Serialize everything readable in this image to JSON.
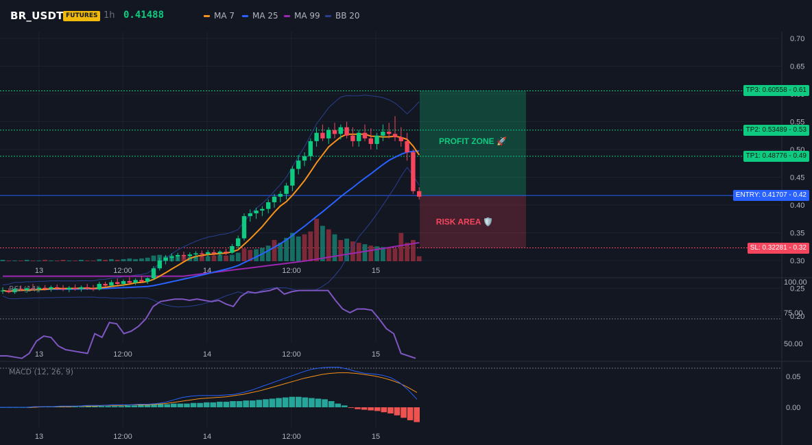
{
  "header": {
    "symbol": "BR_USDT",
    "badge": "FUTURES",
    "timeframe": "1h",
    "price": "0.41488",
    "legend": [
      {
        "label": "MA 7",
        "color": "#f7931a"
      },
      {
        "label": "MA 25",
        "color": "#2962ff"
      },
      {
        "label": "MA 99",
        "color": "#9c27b0"
      },
      {
        "label": "BB 20",
        "color": "#2a3f8f"
      }
    ]
  },
  "colors": {
    "up": "#0ecb81",
    "down": "#f6465d",
    "background": "#131722",
    "tp": "#0ecb81",
    "entry": "#2962ff",
    "sl": "#f6465d",
    "rsi": "#7e57c2"
  },
  "price_axis": [
    "0.70",
    "0.65",
    "0.60",
    "0.55",
    "0.50",
    "0.45",
    "0.40",
    "0.35",
    "0.30",
    "0.25",
    "0.20"
  ],
  "x_axis": [
    "13",
    "12:00",
    "14",
    "12:00",
    "15"
  ],
  "levels": [
    {
      "kind": "tp",
      "label": "TP3: 0.60558",
      "value": 0.60558,
      "axis": "0.61"
    },
    {
      "kind": "tp",
      "label": "TP2: 0.53489",
      "value": 0.53489,
      "axis": "0.53"
    },
    {
      "kind": "tp",
      "label": "TP1: 0.48776",
      "value": 0.48776,
      "axis": "0.49"
    },
    {
      "kind": "entry",
      "label": "ENTRY: 0.41707",
      "value": 0.41707,
      "axis": "0.42"
    },
    {
      "kind": "sl",
      "label": "SL: 0.32281",
      "value": 0.32281,
      "axis": "0.32"
    }
  ],
  "zones": {
    "profit": "PROFIT ZONE 🚀",
    "risk": "RISK AREA 🛡️"
  },
  "rsi": {
    "label": "RSI (14)",
    "axis": [
      "100.00",
      "75.00",
      "50.00"
    ]
  },
  "macd": {
    "label": "MACD (12, 26, 9)",
    "axis": [
      "0.05",
      "0.00"
    ]
  },
  "chart_data": {
    "type": "candlestick",
    "ylim": [
      0.17,
      0.71
    ],
    "candles": [
      [
        0.245,
        0.252,
        0.24,
        0.246
      ],
      [
        0.246,
        0.25,
        0.241,
        0.243
      ],
      [
        0.243,
        0.251,
        0.24,
        0.249
      ],
      [
        0.249,
        0.255,
        0.245,
        0.247
      ],
      [
        0.247,
        0.252,
        0.242,
        0.25
      ],
      [
        0.25,
        0.258,
        0.246,
        0.248
      ],
      [
        0.248,
        0.254,
        0.243,
        0.251
      ],
      [
        0.251,
        0.256,
        0.246,
        0.249
      ],
      [
        0.249,
        0.255,
        0.244,
        0.252
      ],
      [
        0.252,
        0.257,
        0.247,
        0.25
      ],
      [
        0.25,
        0.256,
        0.245,
        0.248
      ],
      [
        0.248,
        0.254,
        0.243,
        0.251
      ],
      [
        0.251,
        0.257,
        0.246,
        0.249
      ],
      [
        0.249,
        0.255,
        0.244,
        0.252
      ],
      [
        0.252,
        0.258,
        0.247,
        0.25
      ],
      [
        0.25,
        0.256,
        0.245,
        0.248
      ],
      [
        0.248,
        0.262,
        0.246,
        0.258
      ],
      [
        0.258,
        0.262,
        0.252,
        0.255
      ],
      [
        0.255,
        0.265,
        0.252,
        0.261
      ],
      [
        0.261,
        0.268,
        0.256,
        0.258
      ],
      [
        0.258,
        0.266,
        0.254,
        0.263
      ],
      [
        0.263,
        0.27,
        0.258,
        0.26
      ],
      [
        0.26,
        0.268,
        0.256,
        0.265
      ],
      [
        0.265,
        0.272,
        0.26,
        0.262
      ],
      [
        0.262,
        0.27,
        0.258,
        0.268
      ],
      [
        0.268,
        0.29,
        0.265,
        0.286
      ],
      [
        0.286,
        0.305,
        0.282,
        0.3
      ],
      [
        0.3,
        0.31,
        0.293,
        0.305
      ],
      [
        0.305,
        0.313,
        0.298,
        0.307
      ],
      [
        0.307,
        0.314,
        0.3,
        0.31
      ],
      [
        0.31,
        0.316,
        0.303,
        0.308
      ],
      [
        0.308,
        0.315,
        0.302,
        0.311
      ],
      [
        0.311,
        0.317,
        0.304,
        0.313
      ],
      [
        0.313,
        0.318,
        0.306,
        0.312
      ],
      [
        0.312,
        0.319,
        0.307,
        0.315
      ],
      [
        0.315,
        0.32,
        0.309,
        0.313
      ],
      [
        0.313,
        0.319,
        0.308,
        0.316
      ],
      [
        0.316,
        0.321,
        0.31,
        0.314
      ],
      [
        0.314,
        0.33,
        0.312,
        0.326
      ],
      [
        0.326,
        0.345,
        0.322,
        0.34
      ],
      [
        0.34,
        0.385,
        0.336,
        0.38
      ],
      [
        0.38,
        0.392,
        0.37,
        0.385
      ],
      [
        0.385,
        0.395,
        0.375,
        0.39
      ],
      [
        0.39,
        0.398,
        0.38,
        0.393
      ],
      [
        0.393,
        0.41,
        0.385,
        0.405
      ],
      [
        0.405,
        0.42,
        0.395,
        0.415
      ],
      [
        0.415,
        0.425,
        0.405,
        0.42
      ],
      [
        0.42,
        0.44,
        0.41,
        0.435
      ],
      [
        0.435,
        0.47,
        0.425,
        0.465
      ],
      [
        0.465,
        0.49,
        0.455,
        0.48
      ],
      [
        0.48,
        0.495,
        0.47,
        0.488
      ],
      [
        0.488,
        0.52,
        0.48,
        0.515
      ],
      [
        0.515,
        0.54,
        0.505,
        0.53
      ],
      [
        0.53,
        0.545,
        0.515,
        0.52
      ],
      [
        0.52,
        0.54,
        0.51,
        0.535
      ],
      [
        0.535,
        0.548,
        0.52,
        0.528
      ],
      [
        0.528,
        0.545,
        0.518,
        0.54
      ],
      [
        0.54,
        0.55,
        0.52,
        0.525
      ],
      [
        0.525,
        0.54,
        0.505,
        0.515
      ],
      [
        0.515,
        0.535,
        0.505,
        0.53
      ],
      [
        0.53,
        0.545,
        0.515,
        0.52
      ],
      [
        0.52,
        0.538,
        0.5,
        0.51
      ],
      [
        0.51,
        0.53,
        0.5,
        0.525
      ],
      [
        0.525,
        0.545,
        0.515,
        0.532
      ],
      [
        0.532,
        0.548,
        0.52,
        0.528
      ],
      [
        0.528,
        0.56,
        0.515,
        0.522
      ],
      [
        0.522,
        0.54,
        0.505,
        0.515
      ],
      [
        0.515,
        0.53,
        0.48,
        0.495
      ],
      [
        0.495,
        0.5,
        0.42,
        0.425
      ],
      [
        0.425,
        0.432,
        0.41,
        0.415
      ]
    ],
    "volume": [
      2,
      1,
      1,
      1,
      2,
      1,
      1,
      2,
      1,
      1,
      2,
      1,
      1,
      2,
      1,
      1,
      3,
      2,
      3,
      2,
      3,
      4,
      3,
      4,
      5,
      8,
      9,
      7,
      8,
      6,
      7,
      6,
      7,
      8,
      7,
      8,
      9,
      8,
      9,
      12,
      18,
      16,
      17,
      19,
      22,
      30,
      26,
      33,
      40,
      35,
      38,
      42,
      60,
      50,
      45,
      38,
      30,
      32,
      28,
      26,
      24,
      22,
      21,
      20,
      19,
      18,
      40,
      26,
      30,
      7
    ],
    "volume_up": [
      1,
      0,
      1,
      0,
      1,
      0,
      1,
      0,
      1,
      0,
      0,
      1,
      0,
      1,
      0,
      0,
      1,
      0,
      1,
      0,
      1,
      1,
      1,
      1,
      1,
      1,
      1,
      1,
      1,
      1,
      0,
      1,
      1,
      0,
      1,
      0,
      1,
      0,
      1,
      1,
      0,
      0,
      1,
      1,
      1,
      0,
      1,
      1,
      1,
      1,
      0,
      0,
      0,
      1,
      0,
      1,
      0,
      1,
      0,
      0,
      1,
      0,
      1,
      1,
      0,
      0,
      0,
      0,
      0,
      0
    ],
    "rsi": [
      40,
      40,
      39,
      38,
      42,
      52,
      56,
      55,
      48,
      45,
      44,
      43,
      42,
      58,
      55,
      67,
      66,
      58,
      60,
      64,
      70,
      80,
      84,
      85,
      86,
      86,
      85,
      86,
      85,
      84,
      85,
      82,
      80,
      88,
      92,
      91,
      92,
      93,
      95,
      90,
      92,
      93,
      93,
      93,
      93,
      93,
      85,
      78,
      75,
      78,
      78,
      77,
      70,
      62,
      58,
      42,
      40,
      38
    ],
    "macd_hist": [
      0,
      0,
      0,
      0,
      0,
      0.001,
      0.001,
      0.001,
      0.001,
      0.001,
      0.001,
      0.001,
      0.001,
      0.002,
      0.002,
      0.002,
      0.002,
      0.002,
      0.002,
      0.003,
      0.003,
      0.004,
      0.004,
      0.005,
      0.005,
      0.005,
      0.006,
      0.006,
      0.006,
      0.007,
      0.007,
      0.008,
      0.008,
      0.009,
      0.009,
      0.01,
      0.01,
      0.011,
      0.011,
      0.012,
      0.013,
      0.014,
      0.015,
      0.016,
      0.017,
      0.017,
      0.016,
      0.015,
      0.014,
      0.013,
      0.01,
      0.006,
      0.003,
      -0.001,
      -0.003,
      -0.004,
      -0.005,
      -0.006,
      -0.008,
      -0.01,
      -0.013,
      -0.017,
      -0.021,
      -0.024
    ],
    "macd_line": [
      0,
      0,
      0,
      0,
      0.001,
      0.001,
      0.001,
      0.002,
      0.002,
      0.002,
      0.003,
      0.003,
      0.003,
      0.004,
      0.004,
      0.004,
      0.005,
      0.005,
      0.006,
      0.008,
      0.012,
      0.016,
      0.018,
      0.019,
      0.019,
      0.019,
      0.02,
      0.021,
      0.024,
      0.028,
      0.033,
      0.038,
      0.043,
      0.048,
      0.053,
      0.058,
      0.062,
      0.064,
      0.065,
      0.065,
      0.062,
      0.058,
      0.055,
      0.054,
      0.052,
      0.048,
      0.04,
      0.028,
      0.013
    ],
    "signal_line": [
      0,
      0,
      0,
      0,
      0,
      0.001,
      0.001,
      0.001,
      0.001,
      0.002,
      0.002,
      0.002,
      0.003,
      0.003,
      0.003,
      0.004,
      0.004,
      0.004,
      0.005,
      0.006,
      0.008,
      0.01,
      0.012,
      0.014,
      0.015,
      0.016,
      0.017,
      0.019,
      0.021,
      0.024,
      0.027,
      0.031,
      0.035,
      0.039,
      0.043,
      0.047,
      0.05,
      0.053,
      0.055,
      0.056,
      0.056,
      0.055,
      0.053,
      0.051,
      0.048,
      0.044,
      0.039,
      0.032,
      0.024
    ]
  }
}
